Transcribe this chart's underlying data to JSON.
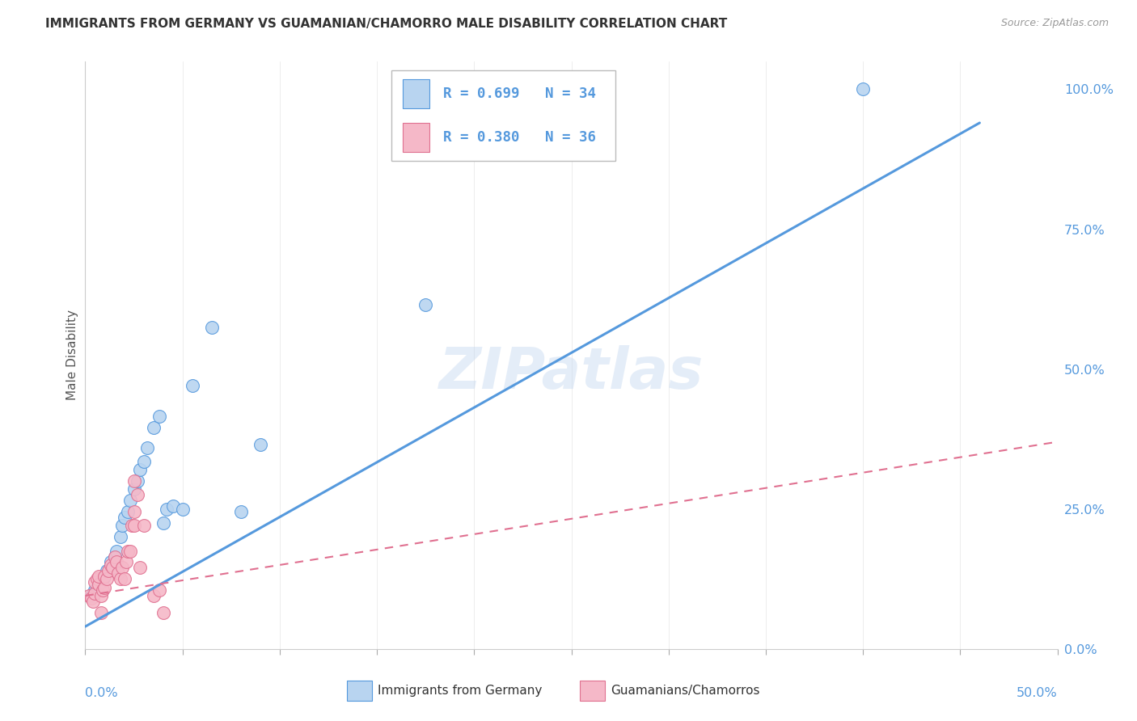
{
  "title": "IMMIGRANTS FROM GERMANY VS GUAMANIAN/CHAMORRO MALE DISABILITY CORRELATION CHART",
  "source": "Source: ZipAtlas.com",
  "ylabel": "Male Disability",
  "right_axis_ticks": [
    "0.0%",
    "25.0%",
    "50.0%",
    "75.0%",
    "100.0%"
  ],
  "legend_blue_r": "R = 0.699",
  "legend_blue_n": "N = 34",
  "legend_pink_r": "R = 0.380",
  "legend_pink_n": "N = 36",
  "legend_label_blue": "Immigrants from Germany",
  "legend_label_pink": "Guamanians/Chamorros",
  "watermark": "ZIPatlas",
  "blue_fill": "#b8d4f0",
  "pink_fill": "#f5b8c8",
  "blue_edge": "#5599dd",
  "pink_edge": "#e07090",
  "blue_line": "#5599dd",
  "pink_line": "#e07090",
  "blue_scatter": [
    [
      0.003,
      0.095
    ],
    [
      0.004,
      0.1
    ],
    [
      0.005,
      0.105
    ],
    [
      0.006,
      0.11
    ],
    [
      0.007,
      0.115
    ],
    [
      0.008,
      0.12
    ],
    [
      0.009,
      0.125
    ],
    [
      0.01,
      0.13
    ],
    [
      0.011,
      0.14
    ],
    [
      0.013,
      0.155
    ],
    [
      0.015,
      0.165
    ],
    [
      0.016,
      0.175
    ],
    [
      0.018,
      0.2
    ],
    [
      0.019,
      0.22
    ],
    [
      0.02,
      0.235
    ],
    [
      0.022,
      0.245
    ],
    [
      0.023,
      0.265
    ],
    [
      0.025,
      0.285
    ],
    [
      0.027,
      0.3
    ],
    [
      0.028,
      0.32
    ],
    [
      0.03,
      0.335
    ],
    [
      0.032,
      0.36
    ],
    [
      0.035,
      0.395
    ],
    [
      0.038,
      0.415
    ],
    [
      0.04,
      0.225
    ],
    [
      0.042,
      0.25
    ],
    [
      0.045,
      0.255
    ],
    [
      0.05,
      0.25
    ],
    [
      0.055,
      0.47
    ],
    [
      0.065,
      0.575
    ],
    [
      0.08,
      0.245
    ],
    [
      0.09,
      0.365
    ],
    [
      0.175,
      0.615
    ],
    [
      0.4,
      1.0
    ]
  ],
  "pink_scatter": [
    [
      0.002,
      0.095
    ],
    [
      0.003,
      0.09
    ],
    [
      0.004,
      0.085
    ],
    [
      0.005,
      0.1
    ],
    [
      0.005,
      0.12
    ],
    [
      0.006,
      0.125
    ],
    [
      0.007,
      0.115
    ],
    [
      0.007,
      0.13
    ],
    [
      0.008,
      0.095
    ],
    [
      0.008,
      0.065
    ],
    [
      0.009,
      0.105
    ],
    [
      0.01,
      0.11
    ],
    [
      0.01,
      0.13
    ],
    [
      0.011,
      0.125
    ],
    [
      0.012,
      0.14
    ],
    [
      0.013,
      0.15
    ],
    [
      0.014,
      0.145
    ],
    [
      0.015,
      0.165
    ],
    [
      0.016,
      0.155
    ],
    [
      0.017,
      0.135
    ],
    [
      0.018,
      0.125
    ],
    [
      0.019,
      0.145
    ],
    [
      0.02,
      0.125
    ],
    [
      0.021,
      0.155
    ],
    [
      0.022,
      0.175
    ],
    [
      0.023,
      0.175
    ],
    [
      0.024,
      0.22
    ],
    [
      0.025,
      0.22
    ],
    [
      0.025,
      0.245
    ],
    [
      0.025,
      0.3
    ],
    [
      0.027,
      0.275
    ],
    [
      0.028,
      0.145
    ],
    [
      0.03,
      0.22
    ],
    [
      0.035,
      0.095
    ],
    [
      0.038,
      0.105
    ],
    [
      0.04,
      0.065
    ]
  ],
  "xlim": [
    0.0,
    0.5
  ],
  "ylim": [
    0.0,
    1.05
  ],
  "blue_trendline_x": [
    0.0,
    0.46
  ],
  "blue_trendline_y": [
    0.04,
    0.94
  ],
  "pink_trendline_x": [
    0.0,
    0.5
  ],
  "pink_trendline_y": [
    0.095,
    0.37
  ],
  "grid_color": "#cccccc",
  "grid_style": "--",
  "right_tick_color": "#5599dd",
  "axis_label_color": "#5599dd",
  "title_color": "#333333",
  "source_color": "#999999"
}
